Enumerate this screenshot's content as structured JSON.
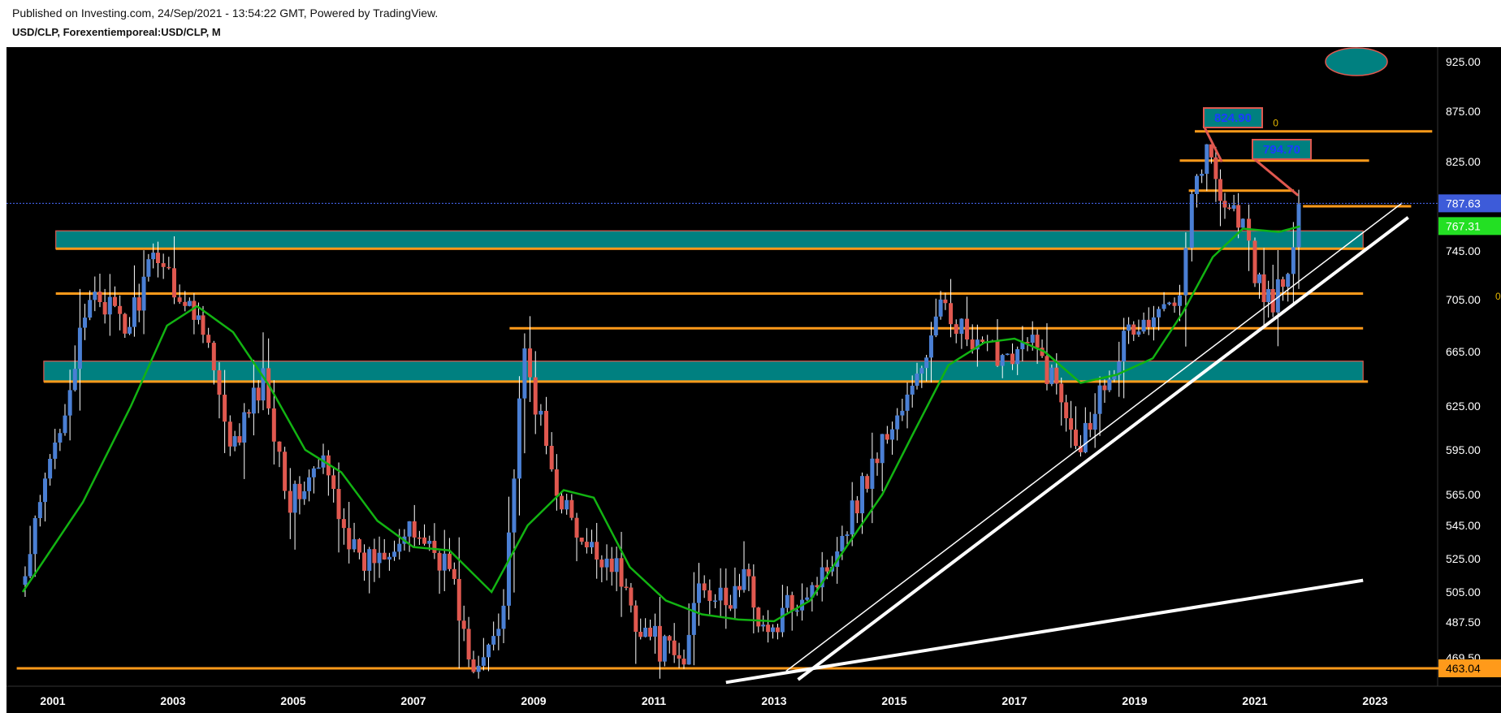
{
  "header": {
    "published": "Published on Investing.com, 24/Sep/2021 - 13:54:22 GMT, Powered by TradingView.",
    "symbol": "USD/CLP, Forexentiemporeal:USD/CLP, M"
  },
  "colors": {
    "background": "#000000",
    "up_candle": "#4a7fd4",
    "down_candle": "#e0584f",
    "moving_average": "#12b312",
    "level_line": "#ff9a1a",
    "zone_fill": "#008080",
    "trendline": "#ffffff",
    "last_price_tag": "#3d5bd9",
    "ma_tag": "#23e023",
    "bottom_tag": "#ff9a1a"
  },
  "chart_data": {
    "type": "candlestick",
    "timeframe": "M",
    "x_ticks": [
      "2001",
      "2003",
      "2005",
      "2007",
      "2009",
      "2011",
      "2013",
      "2015",
      "2017",
      "2019",
      "2021",
      "2023"
    ],
    "y_ticks": [
      "925.00",
      "875.00",
      "825.00",
      "745.00",
      "705.00",
      "665.00",
      "625.00",
      "595.00",
      "565.00",
      "545.00",
      "525.00",
      "505.00",
      "487.50",
      "469.50"
    ],
    "price_tags": [
      {
        "label": "787.63",
        "value": 787.63,
        "kind": "last_price"
      },
      {
        "label": "767.31",
        "value": 767.31,
        "kind": "moving_average"
      },
      {
        "label": "463.04",
        "value": 463.04,
        "kind": "support_line"
      }
    ],
    "callouts": [
      {
        "label": "824.90",
        "value": 824.9,
        "date": 2020.45
      },
      {
        "label": "794.70",
        "value": 794.7,
        "date": 2021.72
      }
    ],
    "stray_labels": [
      {
        "label": "0",
        "value": 860,
        "date": 2021.3
      },
      {
        "label": "0",
        "value": 705,
        "date": 2025.0
      }
    ],
    "anchors": [
      {
        "date": 2000.54,
        "price": 513
      },
      {
        "date": 2001.7,
        "price": 715
      },
      {
        "date": 2002.2,
        "price": 680
      },
      {
        "date": 2002.75,
        "price": 745
      },
      {
        "date": 2003.2,
        "price": 700
      },
      {
        "date": 2003.5,
        "price": 690
      },
      {
        "date": 2003.95,
        "price": 590
      },
      {
        "date": 2004.5,
        "price": 645
      },
      {
        "date": 2004.95,
        "price": 560
      },
      {
        "date": 2005.5,
        "price": 585
      },
      {
        "date": 2006.1,
        "price": 520
      },
      {
        "date": 2006.6,
        "price": 535
      },
      {
        "date": 2007.1,
        "price": 540
      },
      {
        "date": 2007.6,
        "price": 520
      },
      {
        "date": 2008.0,
        "price": 455
      },
      {
        "date": 2008.5,
        "price": 500
      },
      {
        "date": 2008.85,
        "price": 660
      },
      {
        "date": 2009.3,
        "price": 580
      },
      {
        "date": 2009.8,
        "price": 530
      },
      {
        "date": 2010.3,
        "price": 525
      },
      {
        "date": 2010.7,
        "price": 490
      },
      {
        "date": 2011.1,
        "price": 475
      },
      {
        "date": 2011.5,
        "price": 465
      },
      {
        "date": 2011.75,
        "price": 515
      },
      {
        "date": 2012.2,
        "price": 495
      },
      {
        "date": 2012.5,
        "price": 515
      },
      {
        "date": 2012.9,
        "price": 478
      },
      {
        "date": 2013.3,
        "price": 500
      },
      {
        "date": 2013.8,
        "price": 515
      },
      {
        "date": 2014.3,
        "price": 555
      },
      {
        "date": 2014.8,
        "price": 600
      },
      {
        "date": 2015.3,
        "price": 635
      },
      {
        "date": 2015.85,
        "price": 705
      },
      {
        "date": 2016.3,
        "price": 665
      },
      {
        "date": 2016.8,
        "price": 665
      },
      {
        "date": 2017.3,
        "price": 670
      },
      {
        "date": 2017.7,
        "price": 640
      },
      {
        "date": 2018.1,
        "price": 600
      },
      {
        "date": 2018.5,
        "price": 645
      },
      {
        "date": 2018.9,
        "price": 680
      },
      {
        "date": 2019.4,
        "price": 690
      },
      {
        "date": 2019.75,
        "price": 720
      },
      {
        "date": 2019.95,
        "price": 800
      },
      {
        "date": 2020.2,
        "price": 835
      },
      {
        "date": 2020.5,
        "price": 790
      },
      {
        "date": 2020.8,
        "price": 770
      },
      {
        "date": 2021.0,
        "price": 720
      },
      {
        "date": 2021.3,
        "price": 705
      },
      {
        "date": 2021.55,
        "price": 720
      },
      {
        "date": 2021.73,
        "price": 787
      }
    ],
    "moving_average": [
      {
        "date": 2000.5,
        "price": 505
      },
      {
        "date": 2001.5,
        "price": 560
      },
      {
        "date": 2002.3,
        "price": 625
      },
      {
        "date": 2002.9,
        "price": 685
      },
      {
        "date": 2003.4,
        "price": 700
      },
      {
        "date": 2004.0,
        "price": 680
      },
      {
        "date": 2004.6,
        "price": 640
      },
      {
        "date": 2005.2,
        "price": 595
      },
      {
        "date": 2005.8,
        "price": 580
      },
      {
        "date": 2006.4,
        "price": 548
      },
      {
        "date": 2007.0,
        "price": 532
      },
      {
        "date": 2007.6,
        "price": 530
      },
      {
        "date": 2008.3,
        "price": 505
      },
      {
        "date": 2008.9,
        "price": 545
      },
      {
        "date": 2009.5,
        "price": 568
      },
      {
        "date": 2010.0,
        "price": 563
      },
      {
        "date": 2010.6,
        "price": 520
      },
      {
        "date": 2011.2,
        "price": 500
      },
      {
        "date": 2011.8,
        "price": 492
      },
      {
        "date": 2012.4,
        "price": 489
      },
      {
        "date": 2013.0,
        "price": 488
      },
      {
        "date": 2013.6,
        "price": 500
      },
      {
        "date": 2014.2,
        "price": 532
      },
      {
        "date": 2014.8,
        "price": 565
      },
      {
        "date": 2015.3,
        "price": 605
      },
      {
        "date": 2015.9,
        "price": 655
      },
      {
        "date": 2016.5,
        "price": 672
      },
      {
        "date": 2017.0,
        "price": 675
      },
      {
        "date": 2017.5,
        "price": 665
      },
      {
        "date": 2018.1,
        "price": 642
      },
      {
        "date": 2018.7,
        "price": 648
      },
      {
        "date": 2019.3,
        "price": 660
      },
      {
        "date": 2019.8,
        "price": 695
      },
      {
        "date": 2020.3,
        "price": 740
      },
      {
        "date": 2020.8,
        "price": 765
      },
      {
        "date": 2021.4,
        "price": 762
      },
      {
        "date": 2021.75,
        "price": 767
      }
    ],
    "zones": [
      {
        "from": 2001.05,
        "to": 2022.8,
        "low": 747,
        "high": 763
      },
      {
        "from": 2000.85,
        "to": 2022.8,
        "low": 643,
        "high": 658
      }
    ],
    "levels": [
      {
        "from": 2001.05,
        "to": 2022.8,
        "value": 710
      },
      {
        "from": 2008.6,
        "to": 2022.8,
        "value": 683
      },
      {
        "from": 2020.0,
        "to": 2023.95,
        "value": 855
      },
      {
        "from": 2019.75,
        "to": 2022.9,
        "value": 826
      },
      {
        "from": 2019.9,
        "to": 2021.65,
        "value": 799
      },
      {
        "from": 2021.8,
        "to": 2023.6,
        "value": 785
      },
      {
        "from": 2000.4,
        "to": 2024.7,
        "value": 463
      }
    ],
    "trendlines": [
      {
        "from": {
          "date": 2013.2,
          "price": 460
        },
        "to": {
          "date": 2023.45,
          "price": 788
        }
      },
      {
        "from": {
          "date": 2013.4,
          "price": 451
        },
        "to": {
          "date": 2023.55,
          "price": 775
        }
      },
      {
        "from": {
          "date": 2012.2,
          "price": 448
        },
        "to": {
          "date": 2022.8,
          "price": 512
        }
      }
    ]
  }
}
